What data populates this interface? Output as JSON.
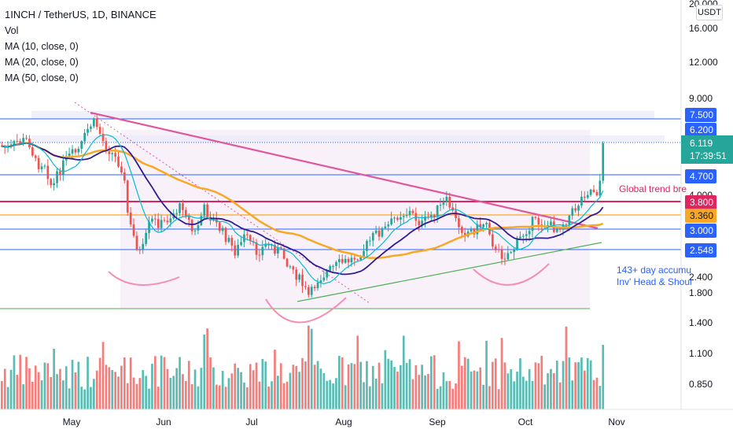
{
  "header": {
    "title": "1INCH / TetherUS, 1D, BINANCE",
    "indicators": [
      "Vol",
      "MA (10, close, 0)",
      "MA (20, close, 0)",
      "MA (50, close, 0)"
    ]
  },
  "currency_label": "USDT",
  "price_scale": {
    "ticks": [
      "20.000",
      "16.000",
      "12.000",
      "9.000",
      "4.000",
      "2.400",
      "1.800",
      "1.400",
      "1.100",
      "0.850"
    ]
  },
  "level_badges": [
    {
      "label": "7.500",
      "color": "#2962ff"
    },
    {
      "label": "6.200",
      "color": "#2962ff"
    },
    {
      "label": "4.700",
      "color": "#2962ff"
    },
    {
      "label": "3.800",
      "color": "#e0245e"
    },
    {
      "label": "3.360",
      "color": "#f9a825"
    },
    {
      "label": "3.000",
      "color": "#2962ff"
    },
    {
      "label": "2.548",
      "color": "#2962ff"
    }
  ],
  "last_price": {
    "price": "6.119",
    "countdown": "17:39:51",
    "color": "#26a69a"
  },
  "time_axis": [
    "May",
    "Jun",
    "Jul",
    "Aug",
    "Sep",
    "Oct",
    "Nov"
  ],
  "annotations": {
    "trend_break": "Global trend bre",
    "accumulation_line1": "143+ day accumu",
    "accumulation_line2": "Inv' Head & Shoul"
  },
  "colors": {
    "up": "#26a69a",
    "down": "#ef5350",
    "ma10": "#00bcd4",
    "ma20": "#311b92",
    "ma50": "#f9a825",
    "trendline": "#e0579b",
    "support": "#4caf50",
    "level": "#2962ff"
  }
}
